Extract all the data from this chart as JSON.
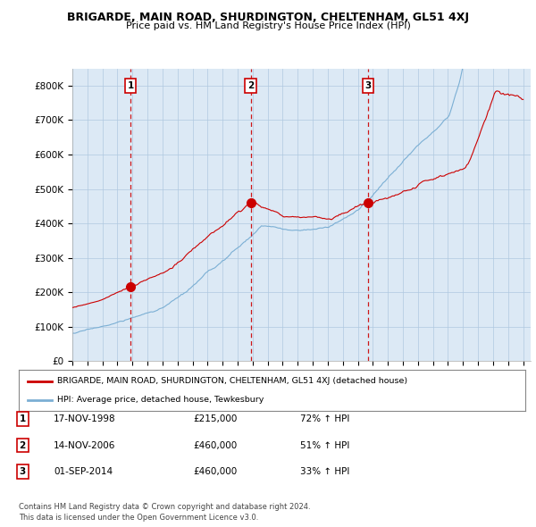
{
  "title": "BRIGARDE, MAIN ROAD, SHURDINGTON, CHELTENHAM, GL51 4XJ",
  "subtitle": "Price paid vs. HM Land Registry's House Price Index (HPI)",
  "ylim": [
    0,
    850000
  ],
  "yticks": [
    0,
    100000,
    200000,
    300000,
    400000,
    500000,
    600000,
    700000,
    800000
  ],
  "ytick_labels": [
    "£0",
    "£100K",
    "£200K",
    "£300K",
    "£400K",
    "£500K",
    "£600K",
    "£700K",
    "£800K"
  ],
  "red_color": "#cc0000",
  "blue_color": "#7bafd4",
  "plot_bg_color": "#dce9f5",
  "sale_dates_num": [
    1998.88,
    2006.87,
    2014.67
  ],
  "sale_prices": [
    215000,
    460000,
    460000
  ],
  "sale_labels": [
    "1",
    "2",
    "3"
  ],
  "legend_red": "BRIGARDE, MAIN ROAD, SHURDINGTON, CHELTENHAM, GL51 4XJ (detached house)",
  "legend_blue": "HPI: Average price, detached house, Tewkesbury",
  "table_rows": [
    [
      "1",
      "17-NOV-1998",
      "£215,000",
      "72% ↑ HPI"
    ],
    [
      "2",
      "14-NOV-2006",
      "£460,000",
      "51% ↑ HPI"
    ],
    [
      "3",
      "01-SEP-2014",
      "£460,000",
      "33% ↑ HPI"
    ]
  ],
  "footnote1": "Contains HM Land Registry data © Crown copyright and database right 2024.",
  "footnote2": "This data is licensed under the Open Government Licence v3.0.",
  "background_color": "#ffffff",
  "grid_color": "#b0c8e0"
}
